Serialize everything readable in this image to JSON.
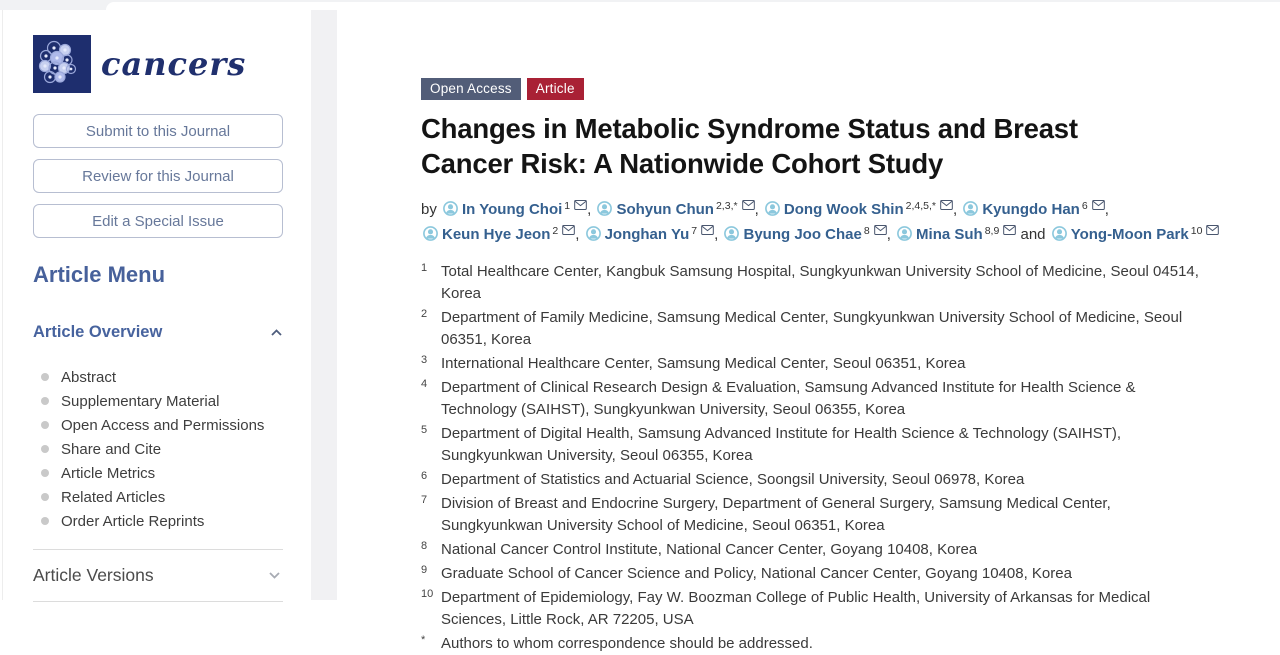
{
  "sidebar": {
    "journal": "cancers",
    "buttons": [
      {
        "label": "Submit to this Journal"
      },
      {
        "label": "Review for this Journal"
      },
      {
        "label": "Edit a Special Issue"
      }
    ],
    "article_menu_title": "Article Menu",
    "overview": {
      "title": "Article Overview",
      "items": [
        "Abstract",
        "Supplementary Material",
        "Open Access and Permissions",
        "Share and Cite",
        "Article Metrics",
        "Related Articles",
        "Order Article Reprints"
      ]
    },
    "versions": {
      "title": "Article Versions"
    }
  },
  "article": {
    "badges": [
      {
        "label": "Open Access",
        "color": "#525d78"
      },
      {
        "label": "Article",
        "color": "#a92135"
      }
    ],
    "title": "Changes in Metabolic Syndrome Status and Breast Cancer Risk: A Nationwide Cohort Study",
    "byline_prefix": "by",
    "and_word": "and",
    "authors": [
      {
        "name": "In Young Choi",
        "sup": "1"
      },
      {
        "name": "Sohyun Chun",
        "sup": "2,3,*"
      },
      {
        "name": "Dong Wook Shin",
        "sup": "2,4,5,*"
      },
      {
        "name": "Kyungdo Han",
        "sup": "6",
        "break_after": true
      },
      {
        "name": "Keun Hye Jeon",
        "sup": "2"
      },
      {
        "name": "Jonghan Yu",
        "sup": "7"
      },
      {
        "name": "Byung Joo Chae",
        "sup": "8"
      },
      {
        "name": "Mina Suh",
        "sup": "8,9"
      },
      {
        "name": "Yong-Moon Park",
        "sup": "10"
      }
    ],
    "affiliations": [
      {
        "num": "1",
        "text": "Total Healthcare Center, Kangbuk Samsung Hospital, Sungkyunkwan University School of Medicine, Seoul 04514, Korea"
      },
      {
        "num": "2",
        "text": "Department of Family Medicine, Samsung Medical Center, Sungkyunkwan University School of Medicine, Seoul 06351, Korea"
      },
      {
        "num": "3",
        "text": "International Healthcare Center, Samsung Medical Center, Seoul 06351, Korea"
      },
      {
        "num": "4",
        "text": "Department of Clinical Research Design & Evaluation, Samsung Advanced Institute for Health Science & Technology (SAIHST), Sungkyunkwan University, Seoul 06355, Korea"
      },
      {
        "num": "5",
        "text": "Department of Digital Health, Samsung Advanced Institute for Health Science & Technology (SAIHST), Sungkyunkwan University, Seoul 06355, Korea"
      },
      {
        "num": "6",
        "text": "Department of Statistics and Actuarial Science, Soongsil University, Seoul 06978, Korea"
      },
      {
        "num": "7",
        "text": "Division of Breast and Endocrine Surgery, Department of General Surgery, Samsung Medical Center, Sungkyunkwan University School of Medicine, Seoul 06351, Korea"
      },
      {
        "num": "8",
        "text": "National Cancer Control Institute, National Cancer Center, Goyang 10408, Korea"
      },
      {
        "num": "9",
        "text": "Graduate School of Cancer Science and Policy, National Cancer Center, Goyang 10408, Korea"
      },
      {
        "num": "10",
        "text": "Department of Epidemiology, Fay W. Boozman College of Public Health, University of Arkansas for Medical Sciences, Little Rock, AR 72205, USA"
      },
      {
        "num": "*",
        "text": "Authors to whom correspondence should be addressed."
      }
    ]
  },
  "colors": {
    "logo_navy": "#1e2e6e",
    "open_access_badge": "#525d78",
    "article_badge": "#a92135",
    "author_link": "#35608f",
    "sidebar_heading": "#47619b"
  }
}
